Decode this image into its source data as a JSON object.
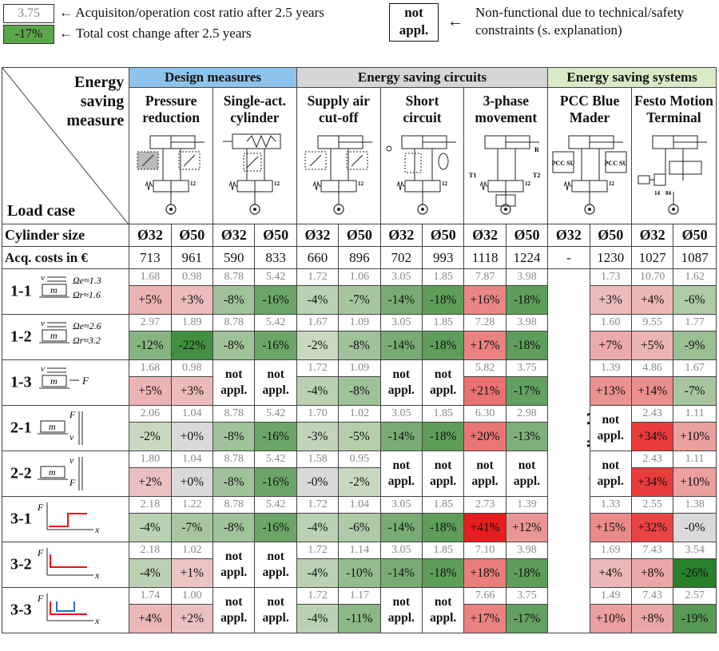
{
  "legend": {
    "ratio_sample": "3.75",
    "ratio_text": "← Acquisiton/operation cost ratio after 2.5 years",
    "change_sample": "-17%",
    "change_text": "← Total cost change after 2.5 years",
    "na_sample_line1": "not",
    "na_sample_line2": "appl.",
    "na_arrow": "←",
    "na_text_line1": "Non-functional due to technical/safety",
    "na_text_line2": "constraints (s. explanation)"
  },
  "corner": {
    "top_line1": "Energy",
    "top_line2": "saving",
    "top_line3": "measure",
    "bottom": "Load case"
  },
  "groups": {
    "design": "Design measures",
    "circuits": "Energy saving circuits",
    "systems": "Energy saving systems"
  },
  "colors": {
    "design": "#8ec4ec",
    "circuits": "#d6d6d6",
    "systems": "#d9eac6"
  },
  "measures": [
    {
      "l1": "Pressure",
      "l2": "reduction"
    },
    {
      "l1": "Single-act.",
      "l2": "cylinder"
    },
    {
      "l1": "Supply air",
      "l2": "cut-off"
    },
    {
      "l1": "Short",
      "l2": "circuit"
    },
    {
      "l1": "3-phase",
      "l2": "movement"
    },
    {
      "l1": "PCC Blue",
      "l2": "Mader"
    },
    {
      "l1": "Festo Motion",
      "l2": "Terminal"
    }
  ],
  "schematic_labels": {
    "pcc": "PCC SU",
    "t1": "T1",
    "t2": "T2",
    "r": "R",
    "n14": "14",
    "n84": "84",
    "n12": "12"
  },
  "cylinder_size_label": "Cylinder size",
  "sizes": [
    "Ø32",
    "Ø50",
    "Ø32",
    "Ø50",
    "Ø32",
    "Ø50",
    "Ø32",
    "Ø50",
    "Ø32",
    "Ø50",
    "Ø32",
    "Ø50",
    "Ø32",
    "Ø50"
  ],
  "acq_label": "Acq. costs in €",
  "acq_costs": [
    "713",
    "961",
    "590",
    "833",
    "660",
    "896",
    "702",
    "993",
    "1118",
    "1224",
    "-",
    "1230",
    "1027",
    "1087"
  ],
  "not_applicable_label": "not applicable",
  "na_line1": "not",
  "na_line2": "appl.",
  "load_cases": [
    {
      "id": "1-1",
      "sym": {
        "o1": "Ωe≈1.3",
        "o2": "Ωr≈1.6",
        "v": "v",
        "m": "m"
      },
      "ratios": [
        "1.68",
        "0.98",
        "8.78",
        "5.42",
        "1.72",
        "1.06",
        "3.05",
        "1.85",
        "7.87",
        "3.98",
        "1.73",
        "10.70",
        "1.62"
      ],
      "changes": [
        "+5%",
        "+3%",
        "-8%",
        "-16%",
        "-4%",
        "-7%",
        "-14%",
        "-18%",
        "+16%",
        "-18%",
        "+3%",
        "+4%",
        "-6%"
      ]
    },
    {
      "id": "1-2",
      "sym": {
        "o1": "Ωe≈2.6",
        "o2": "Ωr≈3.2",
        "v": "v",
        "m": "m"
      },
      "ratios": [
        "2.97",
        "1.89",
        "8.78",
        "5.42",
        "1.67",
        "1.09",
        "3.05",
        "1.85",
        "7.28",
        "3.98",
        "1.60",
        "9.55",
        "1.77"
      ],
      "changes": [
        "-12%",
        "-22%",
        "-8%",
        "-16%",
        "-2%",
        "-8%",
        "-14%",
        "-18%",
        "+17%",
        "-18%",
        "+7%",
        "+5%",
        "-9%"
      ]
    },
    {
      "id": "1-3",
      "sym": {
        "v": "v",
        "m": "m",
        "f": "F"
      },
      "ratios": [
        "1.68",
        "0.98",
        null,
        null,
        "1.72",
        "1.09",
        null,
        null,
        "5.82",
        "3.75",
        "1.39",
        "4.86",
        "1.67"
      ],
      "changes": [
        "+5%",
        "+3%",
        "NA",
        "NA",
        "-4%",
        "-8%",
        "NA",
        "NA",
        "+21%",
        "-17%",
        "+13%",
        "+14%",
        "-7%"
      ]
    },
    {
      "id": "2-1",
      "sym": {
        "v": "v",
        "m": "m",
        "f": "F"
      },
      "ratios": [
        "2.06",
        "1.04",
        "8.78",
        "5.42",
        "1.70",
        "1.02",
        "3.05",
        "1.85",
        "6.30",
        "2.98",
        null,
        "2.43",
        "1.11"
      ],
      "changes": [
        "-2%",
        "+0%",
        "-8%",
        "-16%",
        "-3%",
        "-5%",
        "-14%",
        "-18%",
        "+20%",
        "-13%",
        "NA",
        "+34%",
        "+10%"
      ]
    },
    {
      "id": "2-2",
      "sym": {
        "v": "v",
        "m": "m",
        "f": "F"
      },
      "ratios": [
        "1.80",
        "1.04",
        "8.78",
        "5.42",
        "1.58",
        "0.95",
        null,
        null,
        null,
        null,
        null,
        "2.43",
        "1.11"
      ],
      "changes": [
        "+2%",
        "+0%",
        "-8%",
        "-16%",
        "-0%",
        "-2%",
        "NA",
        "NA",
        "NA",
        "NA",
        "NA",
        "+34%",
        "+10%"
      ]
    },
    {
      "id": "3-1",
      "sym": {
        "f": "F",
        "x": "x"
      },
      "ratios": [
        "2.18",
        "1.22",
        "8.78",
        "5.42",
        "1.72",
        "1.04",
        "3.05",
        "1.85",
        "2.73",
        "1.39",
        "1.33",
        "2.55",
        "1.38"
      ],
      "changes": [
        "-4%",
        "-7%",
        "-8%",
        "-16%",
        "-4%",
        "-6%",
        "-14%",
        "-18%",
        "+41%",
        "+12%",
        "+15%",
        "+32%",
        "-0%"
      ]
    },
    {
      "id": "3-2",
      "sym": {
        "f": "F",
        "x": "x"
      },
      "ratios": [
        "2.18",
        "1.02",
        null,
        null,
        "1.72",
        "1.14",
        "3.05",
        "1.85",
        "7.10",
        "3.98",
        "1.69",
        "7.43",
        "3.54"
      ],
      "changes": [
        "-4%",
        "+1%",
        "NA",
        "NA",
        "-4%",
        "-10%",
        "-14%",
        "-18%",
        "+18%",
        "-18%",
        "+4%",
        "+8%",
        "-26%"
      ]
    },
    {
      "id": "3-3",
      "sym": {
        "f": "F",
        "x": "x"
      },
      "ratios": [
        "1.74",
        "1.00",
        null,
        null,
        "1.72",
        "1.17",
        null,
        null,
        "7.66",
        "3.75",
        "1.49",
        "7.43",
        "2.57"
      ],
      "changes": [
        "+4%",
        "+2%",
        "NA",
        "NA",
        "-4%",
        "-11%",
        "NA",
        "NA",
        "+17%",
        "-17%",
        "+10%",
        "+8%",
        "-19%"
      ]
    }
  ]
}
